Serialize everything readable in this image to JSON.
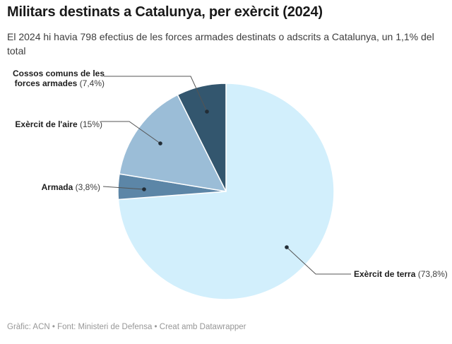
{
  "header": {
    "title": "Militars destinats a Catalunya, per exèrcit (2024)",
    "subtitle": "El 2024 hi havia 798 efectius de les forces armades destinats o adscrits a Catalunya, un 1,1% del total"
  },
  "chart_data": {
    "type": "pie",
    "title": "Militars destinats a Catalunya, per exèrcit (2024)",
    "unit": "percent",
    "total_mentioned": 798,
    "direction": "clockwise",
    "start_angle_deg": 0,
    "categories": [
      "Exèrcit de terra",
      "Armada",
      "Exèrcit de l'aire",
      "Cossos comuns de les forces armades"
    ],
    "values": [
      73.8,
      3.8,
      15,
      7.4
    ],
    "value_labels": [
      "(73,8%)",
      "(3,8%)",
      "(15%)",
      "(7,4%)"
    ],
    "colors": [
      "#d2effc",
      "#5c86a7",
      "#9bbdd7",
      "#33566e"
    ],
    "label_style": "callout-with-leader-lines",
    "legend": "none"
  },
  "footer": {
    "byline": "Gràfic: ACN • Font: Ministeri de Defensa • Creat amb Datawrapper"
  },
  "theme": {
    "background": "#ffffff",
    "text_primary": "#191919",
    "text_secondary": "#3d3d3d",
    "text_muted": "#979797",
    "callout_line": "#545454",
    "callout_dot": "#222d36",
    "slice_separator": "#ffffff"
  }
}
